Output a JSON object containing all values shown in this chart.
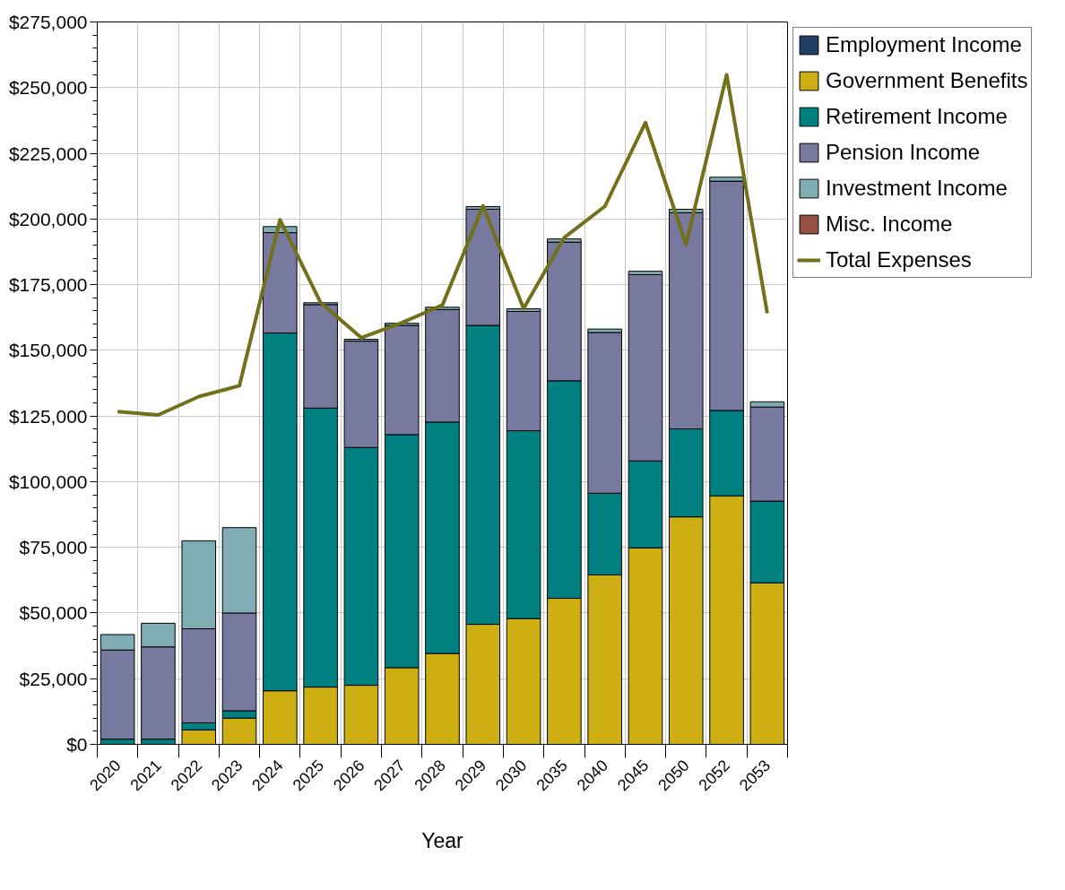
{
  "chart_data": {
    "type": "bar",
    "stacked": true,
    "xlabel": "Year",
    "categories": [
      "2020",
      "2021",
      "2022",
      "2023",
      "2024",
      "2025",
      "2026",
      "2027",
      "2028",
      "2029",
      "2030",
      "2035",
      "2040",
      "2045",
      "2050",
      "2052",
      "2053"
    ],
    "series": [
      {
        "name": "Employment Income",
        "color": "#1f3f66",
        "values": [
          0,
          0,
          0,
          0,
          0,
          0,
          0,
          0,
          0,
          0,
          0,
          0,
          0,
          0,
          0,
          0,
          0
        ]
      },
      {
        "name": "Government Benefits",
        "color": "#cdae13",
        "values": [
          0,
          0,
          5500,
          10000,
          20400,
          21800,
          22500,
          29200,
          34600,
          45700,
          47900,
          55600,
          64500,
          74800,
          86600,
          94600,
          61500
        ]
      },
      {
        "name": "Retirement Income",
        "color": "#008080",
        "values": [
          2000,
          2000,
          2700,
          2800,
          136200,
          106200,
          90500,
          88700,
          88100,
          113800,
          71500,
          82800,
          31100,
          33100,
          33500,
          32500,
          31100
        ]
      },
      {
        "name": "Pension Income",
        "color": "#78799f",
        "values": [
          33900,
          35100,
          35800,
          37200,
          38200,
          39400,
          40500,
          41600,
          42800,
          44200,
          45400,
          52800,
          61200,
          70900,
          82300,
          87300,
          35800
        ]
      },
      {
        "name": "Investment Income",
        "color": "#80acb3",
        "values": [
          5900,
          9000,
          33500,
          32500,
          2300,
          700,
          700,
          800,
          900,
          1000,
          1000,
          1200,
          1300,
          1300,
          1300,
          1500,
          2000
        ]
      },
      {
        "name": "Misc. Income",
        "color": "#955041",
        "values": [
          0,
          0,
          0,
          0,
          0,
          0,
          0,
          0,
          0,
          0,
          0,
          0,
          0,
          0,
          0,
          0,
          0
        ]
      },
      {
        "name": "Total Expenses",
        "type": "line",
        "color": "#72701a",
        "values": [
          126700,
          125400,
          132400,
          136500,
          199700,
          168200,
          154800,
          160500,
          167200,
          205000,
          165900,
          192900,
          204800,
          236700,
          190300,
          254900,
          164100
        ]
      }
    ],
    "ylim": [
      0,
      275000
    ],
    "yticks": [
      {
        "value": 0,
        "label": "$0"
      },
      {
        "value": 25000,
        "label": "$25,000"
      },
      {
        "value": 50000,
        "label": "$50,000"
      },
      {
        "value": 75000,
        "label": "$75,000"
      },
      {
        "value": 100000,
        "label": "$100,000"
      },
      {
        "value": 125000,
        "label": "$125,000"
      },
      {
        "value": 150000,
        "label": "$150,000"
      },
      {
        "value": 175000,
        "label": "$175,000"
      },
      {
        "value": 200000,
        "label": "$200,000"
      },
      {
        "value": 225000,
        "label": "$225,000"
      },
      {
        "value": 250000,
        "label": "$250,000"
      },
      {
        "value": 275000,
        "label": "$275,000"
      }
    ],
    "grid": true,
    "legend": "right",
    "line_style": "solid",
    "marker": "none"
  }
}
